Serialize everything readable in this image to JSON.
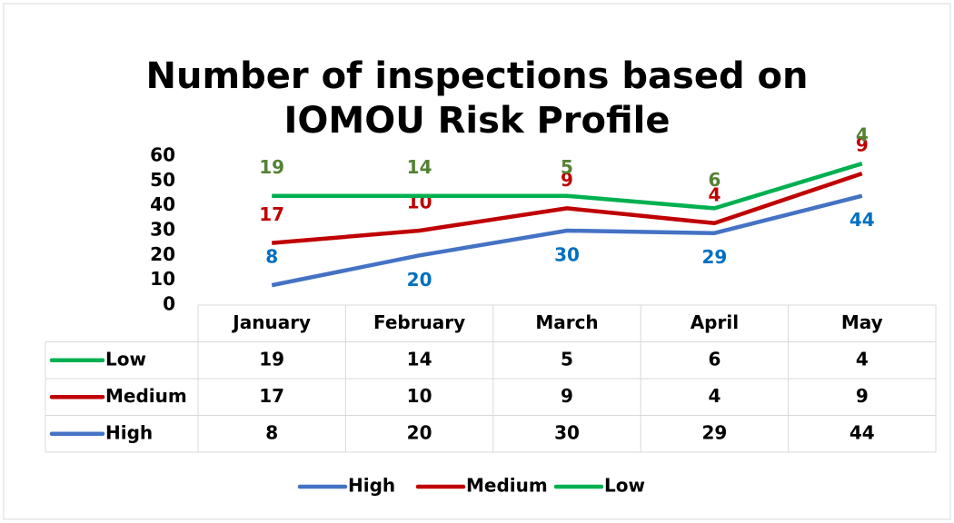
{
  "chart_data": {
    "type": "line",
    "stacked": true,
    "title": "Number of inspections based on IOMOU Risk Profile",
    "categories": [
      "January",
      "February",
      "March",
      "April",
      "May"
    ],
    "series": [
      {
        "name": "High",
        "color": "#4472c4",
        "label_color": "#0070c0",
        "values": [
          8,
          20,
          30,
          29,
          44
        ]
      },
      {
        "name": "Medium",
        "color": "#c00000",
        "label_color": "#c00000",
        "values": [
          17,
          10,
          9,
          4,
          9
        ]
      },
      {
        "name": "Low",
        "color": "#00b050",
        "label_color": "#548235",
        "values": [
          19,
          14,
          5,
          6,
          4
        ]
      }
    ],
    "ylim": [
      0,
      60
    ],
    "yticks": [
      0,
      10,
      20,
      30,
      40,
      50,
      60
    ],
    "grid": false,
    "data_table": true,
    "legend": "bottom"
  }
}
